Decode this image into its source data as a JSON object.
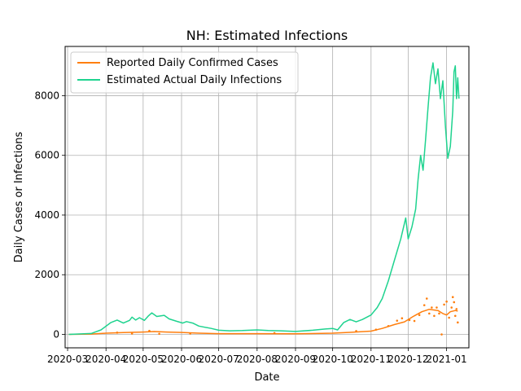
{
  "chart_data": {
    "type": "line",
    "title": "NH: Estimated Infections",
    "xlabel": "Date",
    "ylabel": "Daily Cases or Infections",
    "grid": true,
    "legend_position": "top-left",
    "x_range": [
      "2020-02-28",
      "2021-01-19"
    ],
    "ylim": [
      -450,
      9650
    ],
    "x_ticks": [
      "2020-03",
      "2020-04",
      "2020-05",
      "2020-06",
      "2020-07",
      "2020-08",
      "2020-09",
      "2020-10",
      "2020-11",
      "2020-12",
      "2021-01"
    ],
    "x_tick_dates": [
      "2020-03-01",
      "2020-04-01",
      "2020-05-01",
      "2020-06-01",
      "2020-07-01",
      "2020-08-01",
      "2020-09-01",
      "2020-10-01",
      "2020-11-01",
      "2020-12-01",
      "2021-01-01"
    ],
    "y_ticks": [
      0,
      2000,
      4000,
      6000,
      8000
    ],
    "series": [
      {
        "name": "Reported Daily Confirmed Cases",
        "color": "#ff7f0e",
        "kind": "line",
        "points": [
          [
            "2020-03-02",
            0
          ],
          [
            "2020-03-20",
            10
          ],
          [
            "2020-04-01",
            40
          ],
          [
            "2020-04-15",
            60
          ],
          [
            "2020-05-01",
            80
          ],
          [
            "2020-05-10",
            95
          ],
          [
            "2020-05-20",
            80
          ],
          [
            "2020-06-01",
            65
          ],
          [
            "2020-06-15",
            40
          ],
          [
            "2020-07-01",
            25
          ],
          [
            "2020-08-01",
            25
          ],
          [
            "2020-09-01",
            20
          ],
          [
            "2020-10-01",
            40
          ],
          [
            "2020-10-15",
            70
          ],
          [
            "2020-11-01",
            110
          ],
          [
            "2020-11-10",
            200
          ],
          [
            "2020-11-20",
            330
          ],
          [
            "2020-11-28",
            420
          ],
          [
            "2020-12-05",
            600
          ],
          [
            "2020-12-12",
            760
          ],
          [
            "2020-12-18",
            840
          ],
          [
            "2020-12-25",
            800
          ],
          [
            "2020-12-29",
            700
          ],
          [
            "2021-01-01",
            650
          ],
          [
            "2021-01-04",
            760
          ],
          [
            "2021-01-08",
            800
          ],
          [
            "2021-01-10",
            780
          ]
        ]
      },
      {
        "name": "Estimated Actual Daily Infections",
        "color": "#1fd38f",
        "kind": "line",
        "points": [
          [
            "2020-03-02",
            0
          ],
          [
            "2020-03-20",
            30
          ],
          [
            "2020-03-28",
            150
          ],
          [
            "2020-04-05",
            400
          ],
          [
            "2020-04-10",
            480
          ],
          [
            "2020-04-15",
            380
          ],
          [
            "2020-04-20",
            470
          ],
          [
            "2020-04-22",
            580
          ],
          [
            "2020-04-25",
            480
          ],
          [
            "2020-04-28",
            560
          ],
          [
            "2020-05-02",
            470
          ],
          [
            "2020-05-05",
            610
          ],
          [
            "2020-05-08",
            720
          ],
          [
            "2020-05-12",
            600
          ],
          [
            "2020-05-18",
            640
          ],
          [
            "2020-05-22",
            520
          ],
          [
            "2020-05-28",
            440
          ],
          [
            "2020-06-02",
            380
          ],
          [
            "2020-06-05",
            430
          ],
          [
            "2020-06-10",
            380
          ],
          [
            "2020-06-15",
            280
          ],
          [
            "2020-06-25",
            200
          ],
          [
            "2020-07-01",
            140
          ],
          [
            "2020-07-10",
            120
          ],
          [
            "2020-07-20",
            130
          ],
          [
            "2020-08-01",
            150
          ],
          [
            "2020-08-10",
            130
          ],
          [
            "2020-08-20",
            120
          ],
          [
            "2020-09-01",
            100
          ],
          [
            "2020-09-15",
            140
          ],
          [
            "2020-09-25",
            180
          ],
          [
            "2020-10-01",
            200
          ],
          [
            "2020-10-05",
            150
          ],
          [
            "2020-10-10",
            400
          ],
          [
            "2020-10-15",
            500
          ],
          [
            "2020-10-20",
            420
          ],
          [
            "2020-10-25",
            500
          ],
          [
            "2020-11-01",
            650
          ],
          [
            "2020-11-06",
            900
          ],
          [
            "2020-11-10",
            1200
          ],
          [
            "2020-11-15",
            1800
          ],
          [
            "2020-11-20",
            2500
          ],
          [
            "2020-11-25",
            3200
          ],
          [
            "2020-11-29",
            3900
          ],
          [
            "2020-12-01",
            3200
          ],
          [
            "2020-12-04",
            3600
          ],
          [
            "2020-12-07",
            4200
          ],
          [
            "2020-12-09",
            5200
          ],
          [
            "2020-12-11",
            6000
          ],
          [
            "2020-12-13",
            5500
          ],
          [
            "2020-12-15",
            6500
          ],
          [
            "2020-12-17",
            7600
          ],
          [
            "2020-12-19",
            8600
          ],
          [
            "2020-12-21",
            9100
          ],
          [
            "2020-12-23",
            8400
          ],
          [
            "2020-12-25",
            8900
          ],
          [
            "2020-12-27",
            7900
          ],
          [
            "2020-12-29",
            8500
          ],
          [
            "2020-12-31",
            7000
          ],
          [
            "2021-01-02",
            5900
          ],
          [
            "2021-01-04",
            6300
          ],
          [
            "2021-01-06",
            7500
          ],
          [
            "2021-01-07",
            8800
          ],
          [
            "2021-01-08",
            9000
          ],
          [
            "2021-01-09",
            7900
          ],
          [
            "2021-01-10",
            8600
          ],
          [
            "2021-01-11",
            7900
          ]
        ]
      },
      {
        "name": "",
        "color": "#ff7f0e",
        "kind": "scatter",
        "points": [
          [
            "2020-04-10",
            60
          ],
          [
            "2020-04-22",
            30
          ],
          [
            "2020-05-06",
            120
          ],
          [
            "2020-05-14",
            20
          ],
          [
            "2020-06-08",
            30
          ],
          [
            "2020-08-15",
            45
          ],
          [
            "2020-10-20",
            110
          ],
          [
            "2020-11-05",
            160
          ],
          [
            "2020-11-15",
            280
          ],
          [
            "2020-11-22",
            460
          ],
          [
            "2020-11-26",
            540
          ],
          [
            "2020-12-02",
            480
          ],
          [
            "2020-12-06",
            450
          ],
          [
            "2020-12-10",
            650
          ],
          [
            "2020-12-14",
            980
          ],
          [
            "2020-12-16",
            1200
          ],
          [
            "2020-12-18",
            700
          ],
          [
            "2020-12-20",
            900
          ],
          [
            "2020-12-22",
            620
          ],
          [
            "2020-12-24",
            900
          ],
          [
            "2020-12-26",
            700
          ],
          [
            "2020-12-28",
            0
          ],
          [
            "2020-12-30",
            1000
          ],
          [
            "2021-01-01",
            1100
          ],
          [
            "2021-01-03",
            560
          ],
          [
            "2021-01-05",
            900
          ],
          [
            "2021-01-06",
            1250
          ],
          [
            "2021-01-07",
            1080
          ],
          [
            "2021-01-08",
            620
          ],
          [
            "2021-01-09",
            850
          ],
          [
            "2021-01-10",
            400
          ]
        ]
      }
    ]
  }
}
